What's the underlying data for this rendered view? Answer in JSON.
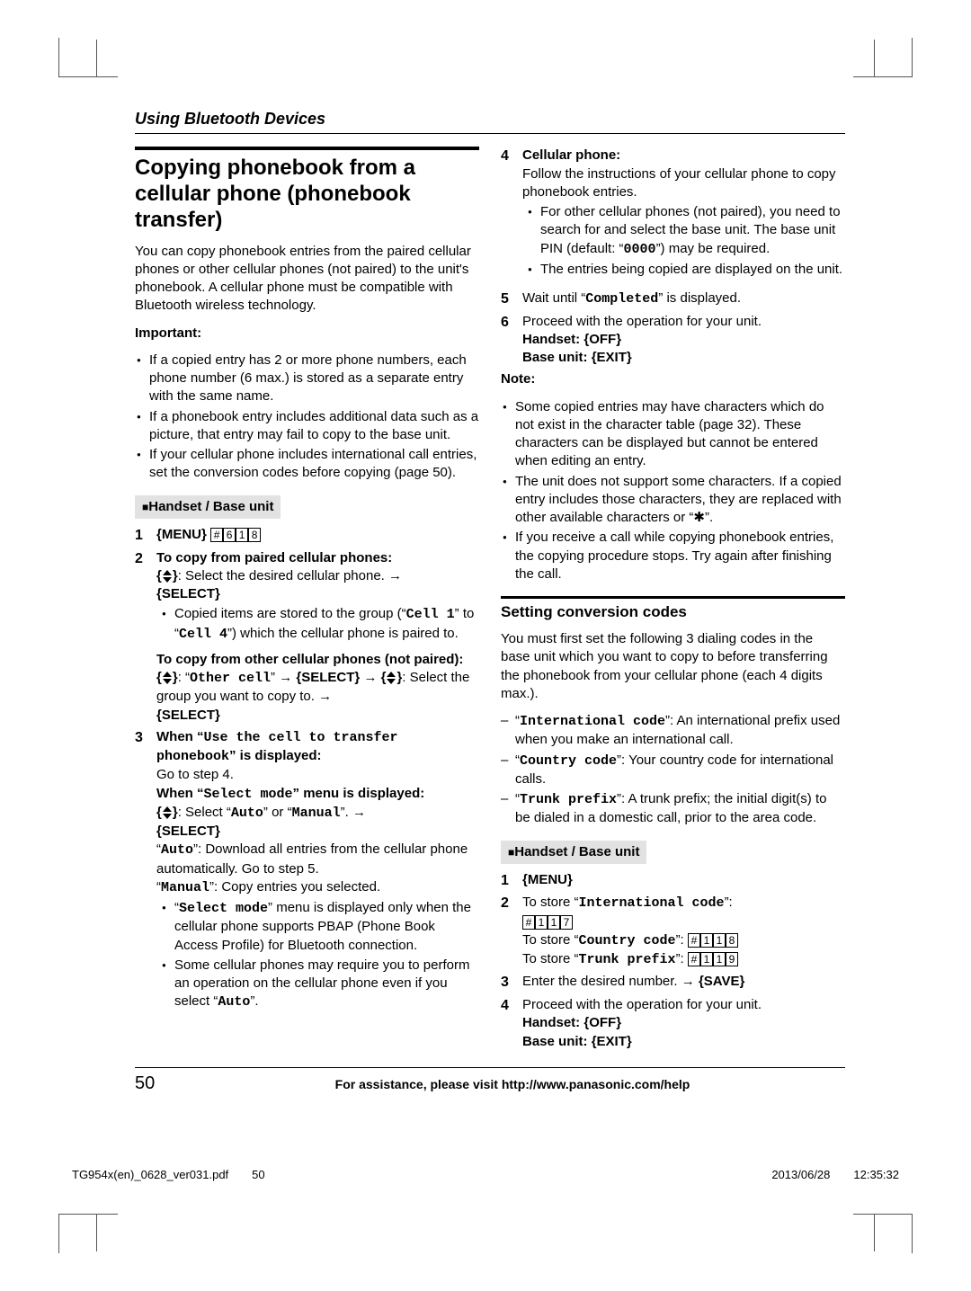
{
  "header": "Using Bluetooth Devices",
  "title": "Copying phonebook from a cellular phone (phonebook transfer)",
  "intro": "You can copy phonebook entries from the paired cellular phones or other cellular phones (not paired) to the unit's phonebook. A cellular phone must be compatible with Bluetooth wireless technology.",
  "important_label": "Important:",
  "important": [
    "If a copied entry has 2 or more phone numbers, each phone number (6 max.) is stored as a separate entry with the same name.",
    "If a phonebook entry includes additional data such as a picture, that entry may fail to copy to the base unit.",
    "If your cellular phone includes international call entries, set the conversion codes before copying (page 50)."
  ],
  "hb_label": "Handset / Base unit",
  "step1_menu": "MENU",
  "step1_keys": [
    "#",
    "6",
    "1",
    "8"
  ],
  "step2a": "To copy from paired cellular phones:",
  "step2a_body1": "Select the desired cellular phone.",
  "step2a_select": "SELECT",
  "step2a_bullet": "Copied items are stored to the group (“",
  "step2a_cell1": "Cell 1",
  "step2a_mid": "” to “",
  "step2a_cell4": "Cell 4",
  "step2a_end": "”) which the cellular phone is paired to.",
  "step2b": "To copy from other cellular phones (not paired):",
  "step2b_other": "Other cell",
  "step2b_body": "Select the group you want to copy to.",
  "step3a_pre": "When “",
  "step3a_msg": "Use the cell to transfer phonebook",
  "step3a_post": "” is displayed:",
  "step3a_goto": "Go to step 4.",
  "step3b_pre": "When “",
  "step3b_msg": "Select mode",
  "step3b_post": "” menu is displayed:",
  "step3b_sel": "Select “",
  "step3b_auto": "Auto",
  "step3b_or": "” or “",
  "step3b_manual": "Manual",
  "step3b_end": "”.",
  "step3_auto_desc": "”: Download all entries from the cellular phone automatically. Go to step 5.",
  "step3_manual_desc": "”: Copy entries you selected.",
  "step3_bul1a": "“",
  "step3_bul1b": "” menu is displayed only when the cellular phone supports PBAP (Phone Book Access Profile) for Bluetooth connection.",
  "step3_bul2": "Some cellular phones may require you to perform an operation on the cellular phone even if you select “",
  "step3_bul2b": "”.",
  "step4_label": "Cellular phone:",
  "step4_body": "Follow the instructions of your cellular phone to copy phonebook entries.",
  "step4_bul1": "For other cellular phones (not paired), you need to search for and select the base unit. The base unit PIN (default: “",
  "step4_pin": "0000",
  "step4_bul1b": "”) may be required.",
  "step4_bul2": "The entries being copied are displayed on the unit.",
  "step5": "Wait until “",
  "step5_msg": "Completed",
  "step5b": "” is displayed.",
  "step6": "Proceed with the operation for your unit.",
  "step6_h": "Handset: ",
  "step6_off": "OFF",
  "step6_b": "Base unit: ",
  "step6_exit": "EXIT",
  "note_label": "Note:",
  "notes": [
    "Some copied entries may have characters which do not exist in the character table (page 32). These characters can be displayed but cannot be entered when editing an entry.",
    "The unit does not support some characters. If a copied entry includes those characters, they are replaced with other available characters or “✱”.",
    "If you receive a call while copying phonebook entries, the copying procedure stops. Try again after finishing the call."
  ],
  "sub_title": "Setting conversion codes",
  "sub_intro": "You must first set the following 3 dialing codes in the base unit which you want to copy to before transferring the phonebook from your cellular phone (each 4 digits max.).",
  "code_intl_pre": "“",
  "code_intl": "International code",
  "code_intl_desc": "”: An international prefix used when you make an international call.",
  "code_ctry": "Country code",
  "code_ctry_desc": "”: Your country code for international calls.",
  "code_trunk": "Trunk prefix",
  "code_trunk_desc": "”: A trunk prefix; the initial digit(s) to be dialed in a domestic call, prior to the area code.",
  "s2_step1": "MENU",
  "s2_step2a": "To store “",
  "s2_step2a_end": "”:",
  "s2_key_intl": [
    "#",
    "1",
    "1",
    "7"
  ],
  "s2_step2b": "To store “",
  "s2_key_ctry": [
    "#",
    "1",
    "1",
    "8"
  ],
  "s2_step2c": "To store “",
  "s2_key_trunk": [
    "#",
    "1",
    "1",
    "9"
  ],
  "s2_step3": "Enter the desired number.",
  "s2_save": "SAVE",
  "s2_step4": "Proceed with the operation for your unit.",
  "pgnum": "50",
  "assist": "For assistance, please visit http://www.panasonic.com/help",
  "printleft": "TG954x(en)_0628_ver031.pdf  50",
  "printright": "2013/06/28  12:35:32"
}
